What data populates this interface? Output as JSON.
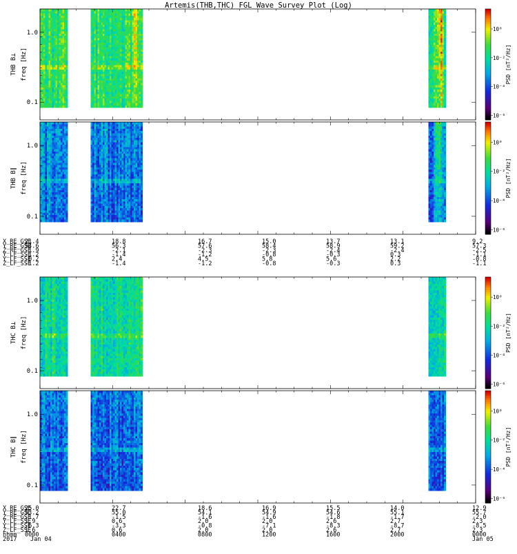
{
  "chart_data": {
    "type": "heatmap",
    "title": "Artemis(THB,THC) FGL Wave Survey Plot (Log)",
    "x_ticks": [
      "0000",
      "0400",
      "0800",
      "1200",
      "1600",
      "2000",
      "0000"
    ],
    "x_dates": [
      "Jan 04",
      "Jan 05"
    ],
    "x_row_labels": [
      "hhmm",
      "2017"
    ],
    "data_intervals_hours": [
      [
        0.0,
        1.5
      ],
      [
        2.8,
        5.6
      ],
      [
        21.4,
        22.3
      ]
    ],
    "bright_features": [
      {
        "panel": 0,
        "hour": 6.4,
        "strength": 1.0
      },
      {
        "panel": 0,
        "hour": 5.2,
        "strength": 0.6
      },
      {
        "panel": 0,
        "hour": 22.0,
        "strength": 0.9
      },
      {
        "panel": 1,
        "hour": 6.3,
        "strength": 0.7
      },
      {
        "panel": 1,
        "hour": 21.9,
        "strength": 0.9
      },
      {
        "panel": 2,
        "hour": 6.5,
        "strength": 1.0
      },
      {
        "panel": 2,
        "hour": 7.8,
        "strength": 0.6
      },
      {
        "panel": 3,
        "hour": 6.5,
        "strength": 0.9
      },
      {
        "panel": 3,
        "hour": 7.6,
        "strength": 0.6
      }
    ],
    "panels": [
      {
        "ylabel": "THB B⊥\nfreq [Hz]",
        "yticks": [
          "1.0",
          "0.1"
        ],
        "cbar_label": "PSD [nT²/Hz]",
        "cbar_ticks": [
          "10⁰",
          "10⁻²",
          "10⁻⁴",
          "10⁻⁶"
        ],
        "level": 0.62
      },
      {
        "ylabel": "THB B∥\nfreq [Hz]",
        "yticks": [
          "1.0",
          "0.1"
        ],
        "cbar_label": "PSD [nT²/Hz]",
        "cbar_ticks": [
          "10⁰",
          "10⁻²",
          "10⁻⁴",
          "10⁻⁶"
        ],
        "level": 0.38
      },
      {
        "ylabel": "THC B⊥\nfreq [Hz]",
        "yticks": [
          "1.0",
          "0.1"
        ],
        "cbar_label": "PSD [nT²/Hz]",
        "cbar_ticks": [
          "10⁰",
          "10⁻²",
          "10⁻⁴",
          "10⁻⁶"
        ],
        "level": 0.56
      },
      {
        "ylabel": "THC B∥\nfreq [Hz]",
        "yticks": [
          "1.0",
          "0.1"
        ],
        "cbar_label": "PSD [nT²/Hz]",
        "cbar_ticks": [
          "10⁰",
          "10⁻²",
          "10⁻⁴",
          "10⁻⁶"
        ],
        "level": 0.36
      }
    ],
    "ephemeris": [
      {
        "probe": "THB",
        "labels": [
          "X_RE_GSE",
          "Y_RE_GSE",
          "Z_RE_GSE",
          "Y_LF_SSE",
          "Y_LF_SSE",
          "Z_LF_SSE"
        ],
        "rows": [
          [
            "21.4",
            "18.8",
            "16.7",
            "15.0",
            "13.7",
            "13.1",
            "9.2"
          ],
          [
            "54.6",
            "56.3",
            "57.6",
            "58.4",
            "58.9",
            "59.2",
            "57.3"
          ],
          [
            "-1.9",
            "-2.1",
            "-2.3",
            "-2.3",
            "-2.4",
            "-2.4",
            "-2.5"
          ],
          [
            "-1.2",
            "-1.4",
            "-1.2",
            "-0.8",
            "-0.3",
            "0.3",
            "-1.1"
          ],
          [
            "-0.2",
            "2.4",
            "4.5",
            "5.8",
            "5.6",
            "2.2",
            "-0.8"
          ],
          [
            "-1.2",
            "-1.4",
            "-1.2",
            "-0.8",
            "-0.3",
            "0.3",
            "-1.1"
          ]
        ]
      },
      {
        "probe": "THC",
        "labels": [
          "X_RE_GSE",
          "Y_RE_GSE",
          "Z_RE_GSE",
          "Y_LF_SSE",
          "Y_LF_SSE",
          "Z_LF_SSE"
        ],
        "rows": [
          [
            "25.0",
            "22.7",
            "18.6",
            "16.9",
            "15.5",
            "14.0",
            "12.9"
          ],
          [
            "53.2",
            "55.0",
            "54.1",
            "54.9",
            "54.6",
            "55.1",
            "55.7"
          ],
          [
            "-1.7",
            "-1.5",
            "-1.6",
            "-1.6",
            "-1.8",
            "-1.7",
            "-2.0"
          ],
          [
            "1.9",
            "0.6",
            "2.0",
            "2.0",
            "2.6",
            "2.7",
            "2.3"
          ],
          [
            "-6.3",
            "-3.3",
            "-0.8",
            "-7.1",
            "-8.3",
            "-8.7",
            "-8.5"
          ],
          [
            "1.6",
            "0.6",
            "2.0",
            "2.0",
            "2.6",
            "2.7",
            "2.3"
          ]
        ]
      }
    ]
  }
}
